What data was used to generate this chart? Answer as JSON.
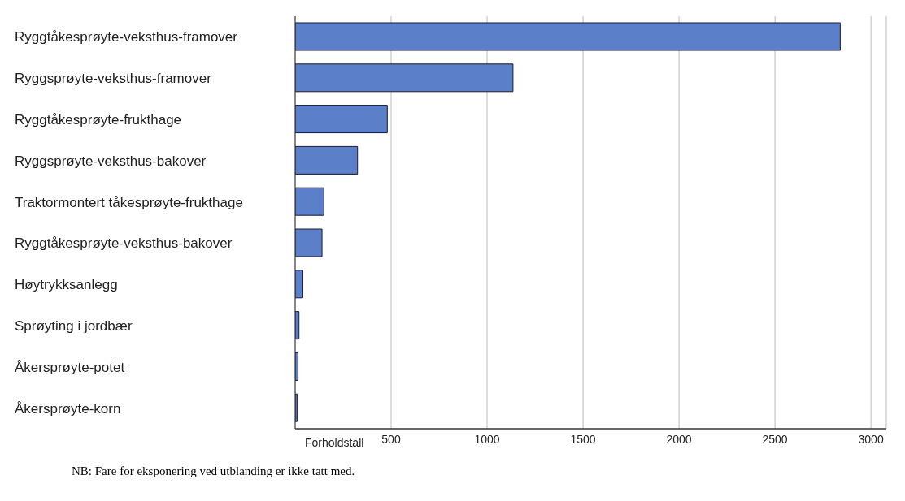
{
  "chart_data": {
    "type": "bar",
    "orientation": "horizontal",
    "categories": [
      "Ryggtåkesprøyte-veksthus-framover",
      "Ryggsprøyte-veksthus-framover",
      "Ryggtåkesprøyte-frukthage",
      "Ryggsprøyte-veksthus-bakover",
      "Traktormontert tåkesprøyte-frukthage",
      "Ryggtåkesprøyte-veksthus-bakover",
      "Høytrykksanlegg",
      "Sprøyting i jordbær",
      "Åkersprøyte-potet",
      "Åkersprøyte-korn"
    ],
    "values": [
      2840,
      1135,
      480,
      325,
      150,
      140,
      40,
      20,
      15,
      10
    ],
    "color": "#5b7fc8",
    "xlabel": "Forholdstall",
    "xlim": [
      0,
      3080
    ],
    "xticks": [
      500,
      1000,
      1500,
      2000,
      2500,
      3000
    ],
    "grid": "x",
    "annotations": [
      "NB:  Fare for eksponering ved utblanding er ikke tatt med."
    ]
  }
}
